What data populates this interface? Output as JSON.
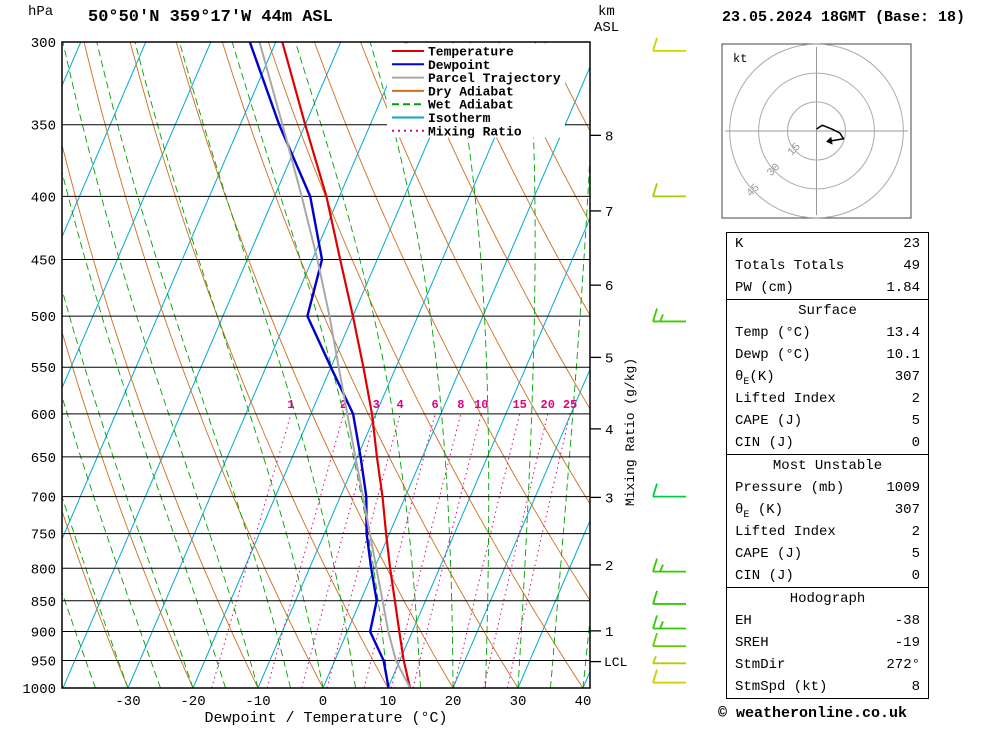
{
  "header": {
    "pressure_unit": "hPa",
    "station": "50°50'N 359°17'W 44m ASL",
    "km_label": "km",
    "asl_label": "ASL",
    "datetime": "23.05.2024 18GMT (Base: 18)"
  },
  "legend": {
    "items": [
      {
        "label": "Temperature",
        "color": "#e00000",
        "dash": ""
      },
      {
        "label": "Dewpoint",
        "color": "#0000cc",
        "dash": ""
      },
      {
        "label": "Parcel Trajectory",
        "color": "#a8a8a8",
        "dash": ""
      },
      {
        "label": "Dry Adiabat",
        "color": "#cc6f1e",
        "dash": ""
      },
      {
        "label": "Wet Adiabat",
        "color": "#00a000",
        "dash": "7,4"
      },
      {
        "label": "Isotherm",
        "color": "#00aacc",
        "dash": ""
      },
      {
        "label": "Mixing Ratio",
        "color": "#e00080",
        "dash": "2,4"
      }
    ]
  },
  "axes": {
    "pressure_ticks": [
      300,
      350,
      400,
      450,
      500,
      550,
      600,
      650,
      700,
      750,
      800,
      850,
      900,
      950,
      1000
    ],
    "temperature_ticks": [
      -30,
      -20,
      -10,
      0,
      10,
      20,
      30,
      40
    ],
    "x_label": "Dewpoint / Temperature (°C)",
    "km_ticks": [
      {
        "km": 8,
        "p": 357
      },
      {
        "km": 7,
        "p": 411
      },
      {
        "km": 6,
        "p": 472
      },
      {
        "km": 5,
        "p": 540
      },
      {
        "km": 4,
        "p": 617
      },
      {
        "km": 3,
        "p": 701
      },
      {
        "km": 2,
        "p": 795
      },
      {
        "km": 1,
        "p": 899
      }
    ],
    "lcl": {
      "label": "LCL",
      "p": 952
    },
    "mixing_ratio_label": "Mixing Ratio (g/kg)",
    "mixing_ratio_values": [
      1,
      2,
      3,
      4,
      6,
      8,
      10,
      15,
      20,
      25
    ]
  },
  "chart_data": {
    "type": "line",
    "title": "Skew-T log-P sounding 50°50'N 359°17'W 44m ASL 23.05.2024 18GMT",
    "x_axis": {
      "label": "Dewpoint / Temperature (°C)",
      "range": [
        -40,
        40
      ]
    },
    "y_axis": {
      "label": "hPa",
      "range": [
        1000,
        300
      ],
      "scale": "log"
    },
    "skewed": true,
    "series": [
      {
        "name": "Temperature",
        "color": "#e00000",
        "points": [
          [
            1000,
            13.4
          ],
          [
            950,
            10.6
          ],
          [
            900,
            8.0
          ],
          [
            850,
            5.3
          ],
          [
            800,
            2.4
          ],
          [
            750,
            -0.5
          ],
          [
            700,
            -3.5
          ],
          [
            650,
            -7.0
          ],
          [
            600,
            -10.6
          ],
          [
            550,
            -15.0
          ],
          [
            500,
            -20.0
          ],
          [
            450,
            -25.7
          ],
          [
            400,
            -32.0
          ],
          [
            350,
            -40.0
          ],
          [
            300,
            -49.0
          ]
        ]
      },
      {
        "name": "Dewpoint",
        "color": "#0000cc",
        "points": [
          [
            1000,
            10.1
          ],
          [
            950,
            7.5
          ],
          [
            900,
            3.5
          ],
          [
            850,
            2.5
          ],
          [
            800,
            -0.5
          ],
          [
            750,
            -3.5
          ],
          [
            700,
            -6.0
          ],
          [
            650,
            -9.5
          ],
          [
            600,
            -13.5
          ],
          [
            550,
            -20.0
          ],
          [
            500,
            -27.0
          ],
          [
            450,
            -28.5
          ],
          [
            400,
            -34.5
          ],
          [
            350,
            -44.0
          ],
          [
            300,
            -54.0
          ]
        ]
      },
      {
        "name": "Parcel Trajectory",
        "color": "#a8a8a8",
        "points": [
          [
            1000,
            13.4
          ],
          [
            950,
            9.4
          ],
          [
            900,
            6.3
          ],
          [
            850,
            3.4
          ],
          [
            800,
            0.3
          ],
          [
            750,
            -3.0
          ],
          [
            700,
            -6.5
          ],
          [
            650,
            -10.3
          ],
          [
            600,
            -14.4
          ],
          [
            550,
            -18.8
          ],
          [
            500,
            -23.6
          ],
          [
            450,
            -29.2
          ],
          [
            400,
            -35.8
          ],
          [
            350,
            -43.5
          ],
          [
            300,
            -52.5
          ]
        ]
      }
    ],
    "wind_barbs": [
      {
        "pressure": 305,
        "color": "#d2d200",
        "full": 1,
        "half": 0
      },
      {
        "pressure": 400,
        "color": "#a0d000",
        "full": 1,
        "half": 0
      },
      {
        "pressure": 505,
        "color": "#3ecc00",
        "full": 1,
        "half": 1
      },
      {
        "pressure": 700,
        "color": "#00cc44",
        "full": 1,
        "half": 0
      },
      {
        "pressure": 805,
        "color": "#2ecc00",
        "full": 1,
        "half": 1
      },
      {
        "pressure": 855,
        "color": "#2ecc00",
        "full": 1,
        "half": 0
      },
      {
        "pressure": 895,
        "color": "#2ecc00",
        "full": 1,
        "half": 1
      },
      {
        "pressure": 925,
        "color": "#66cc00",
        "full": 1,
        "half": 0
      },
      {
        "pressure": 955,
        "color": "#b8cc00",
        "full": 0,
        "half": 1
      },
      {
        "pressure": 990,
        "color": "#cccc00",
        "full": 1,
        "half": 0
      }
    ]
  },
  "hodograph": {
    "unit_label": "kt",
    "rings_kt": [
      15,
      30,
      45
    ],
    "trace_kt": [
      [
        0,
        1
      ],
      [
        3,
        3
      ],
      [
        8,
        1
      ],
      [
        12,
        -1
      ],
      [
        14,
        -4
      ],
      [
        8,
        -5
      ]
    ]
  },
  "info_table": {
    "sections": [
      {
        "header": null,
        "rows": [
          {
            "l": "K",
            "v": "23"
          },
          {
            "l": "Totals Totals",
            "v": "49"
          },
          {
            "l": "PW (cm)",
            "v": "1.84"
          }
        ]
      },
      {
        "header": "Surface",
        "rows": [
          {
            "l": "Temp (°C)",
            "v": "13.4"
          },
          {
            "l": "Dewp (°C)",
            "v": "10.1"
          },
          {
            "l": "θ",
            "sub": "E",
            "l2": "(K)",
            "v": "307"
          },
          {
            "l": "Lifted Index",
            "v": "2"
          },
          {
            "l": "CAPE (J)",
            "v": "5"
          },
          {
            "l": "CIN (J)",
            "v": "0"
          }
        ]
      },
      {
        "header": "Most Unstable",
        "rows": [
          {
            "l": "Pressure (mb)",
            "v": "1009"
          },
          {
            "l": "θ",
            "sub": "E",
            "l2": " (K)",
            "v": "307"
          },
          {
            "l": "Lifted Index",
            "v": "2"
          },
          {
            "l": "CAPE (J)",
            "v": "5"
          },
          {
            "l": "CIN (J)",
            "v": "0"
          }
        ]
      },
      {
        "header": "Hodograph",
        "rows": [
          {
            "l": "EH",
            "v": "-38"
          },
          {
            "l": "SREH",
            "v": "-19"
          },
          {
            "l": "StmDir",
            "v": "272°"
          },
          {
            "l": "StmSpd (kt)",
            "v": "8"
          }
        ]
      }
    ]
  },
  "footer": {
    "copyright": "© weatheronline.co.uk"
  }
}
